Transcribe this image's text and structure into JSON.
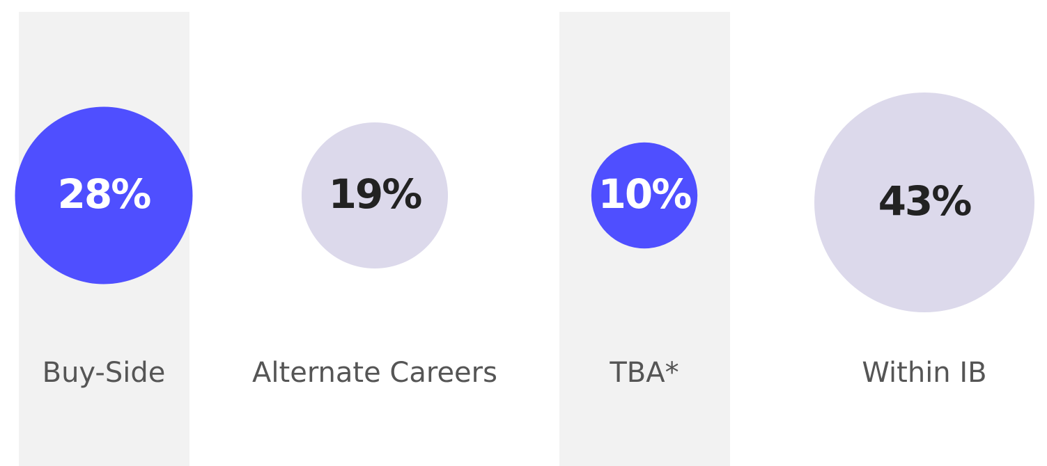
{
  "chart_data": {
    "type": "bubble",
    "categories": [
      "Buy-Side",
      "Alternate Careers",
      "TBA*",
      "Within IB"
    ],
    "values": [
      28,
      19,
      10,
      43
    ],
    "value_labels": [
      "28%",
      "19%",
      "10%",
      "43%"
    ],
    "colors": [
      "#4f4fff",
      "#dcd9eb",
      "#4f4fff",
      "#dcd9eb"
    ],
    "text_colors": [
      "#ffffff",
      "#222222",
      "#ffffff",
      "#222222"
    ]
  }
}
